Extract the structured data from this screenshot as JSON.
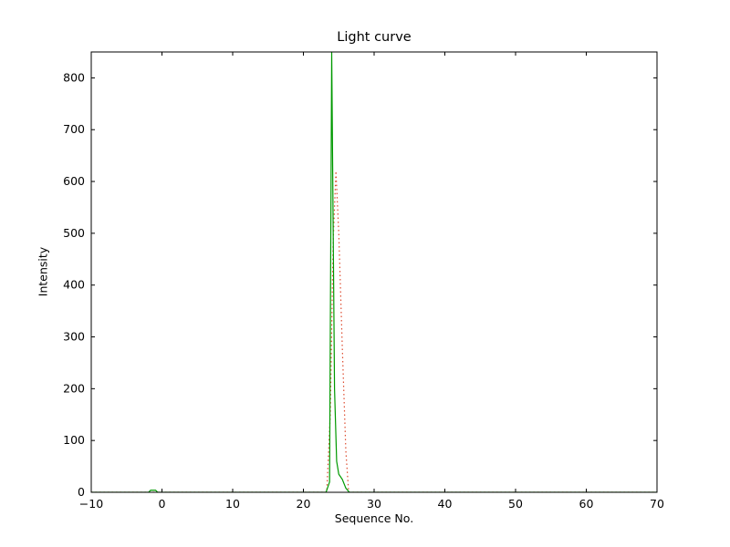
{
  "chart_data": {
    "type": "line",
    "title": "Light curve",
    "xlabel": "Sequence No.",
    "ylabel": "Intensity",
    "xlim": [
      -10,
      70
    ],
    "ylim": [
      0,
      850
    ],
    "xticks": {
      "values": [
        -10,
        0,
        10,
        20,
        30,
        40,
        50,
        60,
        70
      ],
      "labels": [
        "−10",
        "0",
        "10",
        "20",
        "30",
        "40",
        "50",
        "60",
        "70"
      ]
    },
    "yticks": {
      "values": [
        0,
        100,
        200,
        300,
        400,
        500,
        600,
        700,
        800
      ],
      "labels": [
        "0",
        "100",
        "200",
        "300",
        "400",
        "500",
        "600",
        "700",
        "800"
      ]
    },
    "grid": false,
    "legend": "none",
    "background_color": "#ffffff",
    "axis_color": "#000000",
    "series": [
      {
        "name": "light-curve-dotted",
        "linestyle": "dotted",
        "color": "#dd4b2f",
        "points": [
          [
            -10,
            0
          ],
          [
            23.3,
            0
          ],
          [
            23.8,
            150
          ],
          [
            24.2,
            480
          ],
          [
            24.6,
            620
          ],
          [
            25.0,
            500
          ],
          [
            25.5,
            280
          ],
          [
            26.0,
            80
          ],
          [
            26.4,
            0
          ],
          [
            70,
            0
          ]
        ]
      },
      {
        "name": "light-curve-solid",
        "linestyle": "solid",
        "color": "#009900",
        "points": [
          [
            -10,
            0
          ],
          [
            -1.9,
            0
          ],
          [
            -1.6,
            4
          ],
          [
            -0.9,
            4
          ],
          [
            -0.6,
            0
          ],
          [
            23.2,
            0
          ],
          [
            23.7,
            20
          ],
          [
            24.0,
            850
          ],
          [
            24.4,
            200
          ],
          [
            24.7,
            60
          ],
          [
            25.0,
            35
          ],
          [
            25.5,
            25
          ],
          [
            26.0,
            8
          ],
          [
            26.5,
            0
          ],
          [
            70,
            0
          ]
        ]
      }
    ]
  }
}
